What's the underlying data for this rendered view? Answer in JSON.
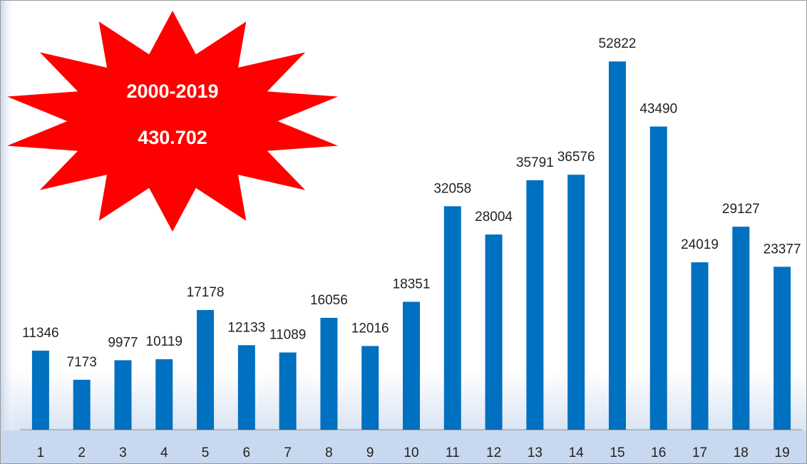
{
  "chart_data": {
    "type": "bar",
    "categories": [
      "1",
      "2",
      "3",
      "4",
      "5",
      "6",
      "7",
      "8",
      "9",
      "10",
      "11",
      "12",
      "13",
      "14",
      "15",
      "16",
      "17",
      "18",
      "19"
    ],
    "values": [
      11346,
      7173,
      9977,
      10119,
      17178,
      12133,
      11089,
      16056,
      12016,
      18351,
      32058,
      28004,
      35791,
      36576,
      52822,
      43490,
      24019,
      29127,
      23377
    ],
    "color": "#0070c0",
    "ylim": [
      0,
      60000
    ],
    "annotations": [
      "2000-2019",
      "430.702"
    ],
    "annotation_color": "#ff0000"
  }
}
